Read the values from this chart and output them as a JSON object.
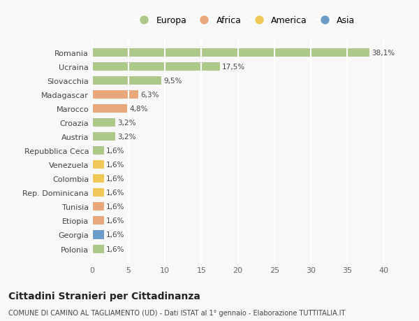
{
  "categories": [
    "Romania",
    "Ucraina",
    "Slovacchia",
    "Madagascar",
    "Marocco",
    "Croazia",
    "Austria",
    "Repubblica Ceca",
    "Venezuela",
    "Colombia",
    "Rep. Dominicana",
    "Tunisia",
    "Etiopia",
    "Georgia",
    "Polonia"
  ],
  "values": [
    38.1,
    17.5,
    9.5,
    6.3,
    4.8,
    3.2,
    3.2,
    1.6,
    1.6,
    1.6,
    1.6,
    1.6,
    1.6,
    1.6,
    1.6
  ],
  "labels": [
    "38,1%",
    "17,5%",
    "9,5%",
    "6,3%",
    "4,8%",
    "3,2%",
    "3,2%",
    "1,6%",
    "1,6%",
    "1,6%",
    "1,6%",
    "1,6%",
    "1,6%",
    "1,6%",
    "1,6%"
  ],
  "colors": [
    "#adc98a",
    "#adc98a",
    "#adc98a",
    "#e8a87c",
    "#e8a87c",
    "#adc98a",
    "#adc98a",
    "#adc98a",
    "#f0c85a",
    "#f0c85a",
    "#f0c85a",
    "#e8a87c",
    "#e8a87c",
    "#6a9dc8",
    "#adc98a"
  ],
  "legend_labels": [
    "Europa",
    "Africa",
    "America",
    "Asia"
  ],
  "legend_colors": [
    "#adc98a",
    "#e8a87c",
    "#f0c85a",
    "#6a9dc8"
  ],
  "xlim": [
    0,
    42
  ],
  "xticks": [
    0,
    5,
    10,
    15,
    20,
    25,
    30,
    35,
    40
  ],
  "title": "Cittadini Stranieri per Cittadinanza",
  "subtitle": "COMUNE DI CAMINO AL TAGLIAMENTO (UD) - Dati ISTAT al 1° gennaio - Elaborazione TUTTITALIA.IT",
  "background_color": "#f8f8f8",
  "grid_color": "#ffffff",
  "bar_height": 0.6
}
